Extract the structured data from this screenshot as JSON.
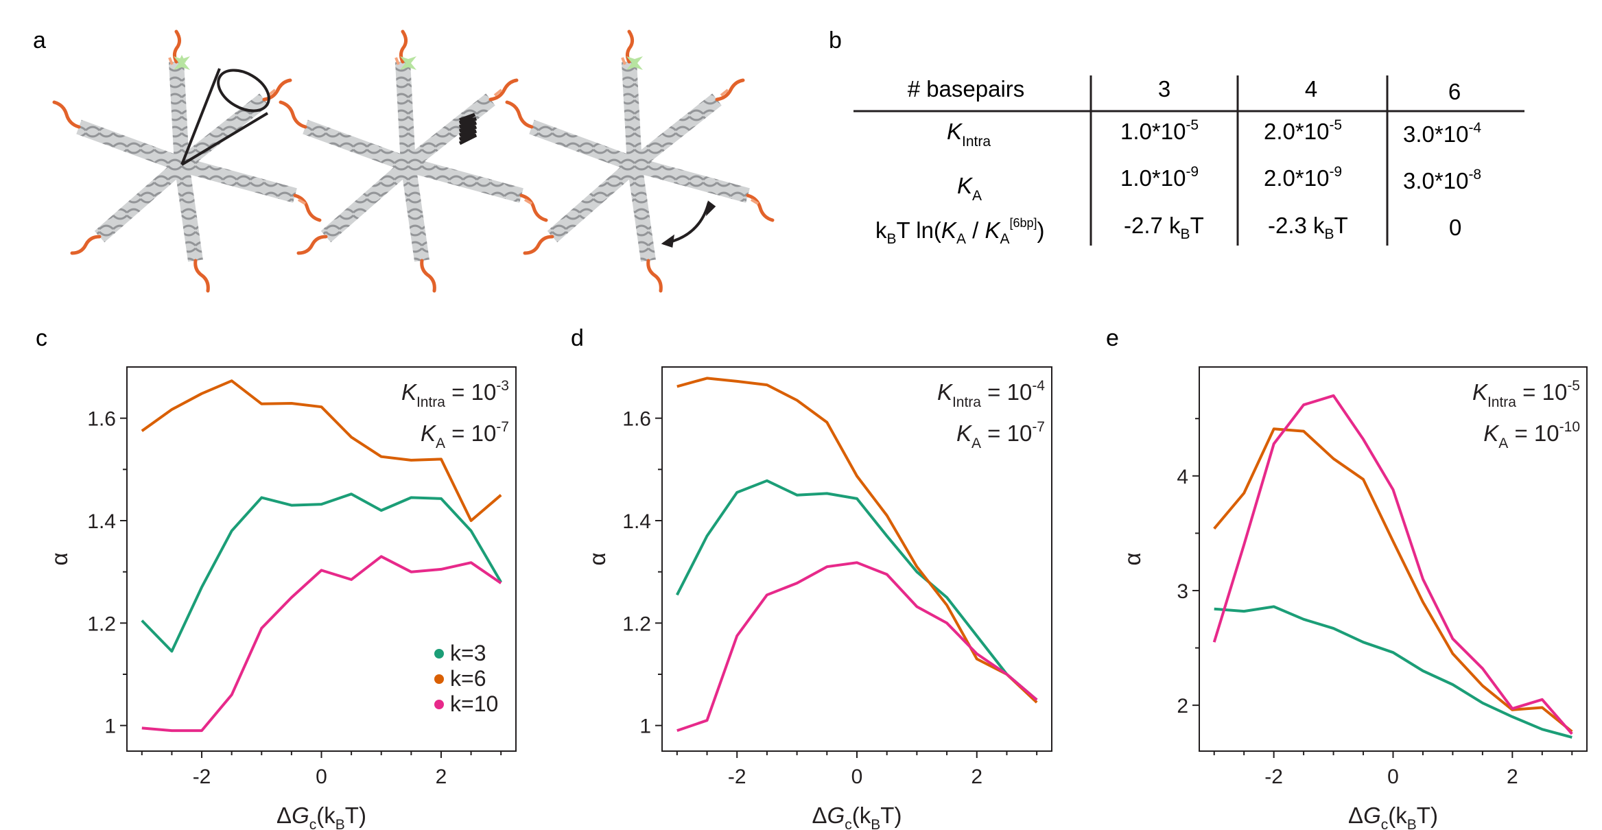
{
  "panel_labels": {
    "a": "a",
    "b": "b",
    "c": "c",
    "d": "d",
    "e": "e"
  },
  "table": {
    "headers": [
      "# basepairs",
      "3",
      "4",
      "6"
    ],
    "rows": [
      {
        "label": {
          "main": "K",
          "sub": "Intra"
        },
        "values": [
          "1.0*10-5",
          "2.0*10-5",
          "3.0*10-4"
        ]
      },
      {
        "label": {
          "main": "K",
          "sub": "A"
        },
        "values": [
          "1.0*10-9",
          "2.0*10-9",
          "3.0*10-8"
        ]
      },
      {
        "label": "kBT ln(KA / KA[6bp])",
        "values": [
          "-2.7 kBT",
          "-2.3 kBT",
          "0"
        ]
      }
    ]
  },
  "table_parts": {
    "r1": {
      "m": "1.0*10",
      "e": "-5"
    },
    "r1b": {
      "m": "2.0*10",
      "e": "-5"
    },
    "r1c": {
      "m": "3.0*10",
      "e": "-4"
    },
    "r2": {
      "m": "1.0*10",
      "e": "-9"
    },
    "r2b": {
      "m": "2.0*10",
      "e": "-9"
    },
    "r2c": {
      "m": "3.0*10",
      "e": "-8"
    },
    "r3a": "-2.7 k",
    "r3b": "-2.3 k",
    "r3c": "0",
    "sub_B": "B",
    "T": "T",
    "lbl3_a": "k",
    "lbl3_b": "T ln(",
    "lbl3_k": "K",
    "lbl3_sub": "A",
    "lbl3_slash": " / ",
    "lbl3_sup": "[6bp]",
    "lbl3_close": ")"
  },
  "colors": {
    "k3": "#1b9e77",
    "k6": "#d95f02",
    "k10": "#e7298a",
    "axis": "#231f20",
    "helix": "#bcbec0",
    "helix_dark": "#a7a9ac",
    "star": "#b7e4a0"
  },
  "legend": [
    {
      "label": "k=3",
      "series": "k3"
    },
    {
      "label": "k=6",
      "series": "k6"
    },
    {
      "label": "k=10",
      "series": "k10"
    }
  ],
  "axis_text": {
    "alpha": "α",
    "x_prefix": "Δ",
    "x_G": "G",
    "x_c": "c",
    "x_open": "(k",
    "x_B": "B",
    "x_close": "T)"
  },
  "chart_data": [
    {
      "type": "line",
      "panel": "c",
      "annotation": {
        "k_intra": "10-3",
        "k_a": "10-7"
      },
      "xlabel": "ΔGc(kBT)",
      "ylabel": "α",
      "xlim": [
        -3.25,
        3.25
      ],
      "ylim": [
        0.95,
        1.7
      ],
      "xticks": [
        -2,
        0,
        2
      ],
      "xtick_labels": [
        "-2",
        "0",
        "2"
      ],
      "yticks": [
        1.0,
        1.2,
        1.4,
        1.6
      ],
      "ytick_labels": [
        "1",
        "1.2",
        "1.4",
        "1.6"
      ],
      "x": [
        -3,
        -2.5,
        -2,
        -1.5,
        -1,
        -0.5,
        0,
        0.5,
        1,
        1.5,
        2,
        2.5,
        3
      ],
      "series": [
        {
          "name": "k=3",
          "key": "k3",
          "values": [
            1.205,
            1.145,
            1.27,
            1.38,
            1.445,
            1.43,
            1.432,
            1.452,
            1.42,
            1.445,
            1.443,
            1.38,
            1.28
          ]
        },
        {
          "name": "k=6",
          "key": "k6",
          "values": [
            1.575,
            1.617,
            1.648,
            1.673,
            1.628,
            1.629,
            1.622,
            1.563,
            1.525,
            1.518,
            1.52,
            1.4,
            1.45
          ]
        },
        {
          "name": "k=10",
          "key": "k10",
          "values": [
            0.995,
            0.99,
            0.99,
            1.06,
            1.19,
            1.25,
            1.303,
            1.285,
            1.33,
            1.3,
            1.305,
            1.318,
            1.278
          ]
        }
      ]
    },
    {
      "type": "line",
      "panel": "d",
      "annotation": {
        "k_intra": "10-4",
        "k_a": "10-7"
      },
      "xlabel": "ΔGc(kBT)",
      "ylabel": "α",
      "xlim": [
        -3.25,
        3.25
      ],
      "ylim": [
        0.95,
        1.7
      ],
      "xticks": [
        -2,
        0,
        2
      ],
      "xtick_labels": [
        "-2",
        "0",
        "2"
      ],
      "yticks": [
        1.0,
        1.2,
        1.4,
        1.6
      ],
      "ytick_labels": [
        "1",
        "1.2",
        "1.4",
        "1.6"
      ],
      "x": [
        -3,
        -2.5,
        -2,
        -1.5,
        -1,
        -0.5,
        0,
        0.5,
        1,
        1.5,
        2,
        2.5,
        3
      ],
      "series": [
        {
          "name": "k=3",
          "key": "k3",
          "values": [
            1.255,
            1.37,
            1.455,
            1.478,
            1.45,
            1.453,
            1.443,
            1.37,
            1.3,
            1.25,
            1.175,
            1.1,
            1.05
          ]
        },
        {
          "name": "k=6",
          "key": "k6",
          "values": [
            1.662,
            1.678,
            1.672,
            1.665,
            1.635,
            1.592,
            1.487,
            1.41,
            1.31,
            1.235,
            1.13,
            1.1,
            1.045
          ]
        },
        {
          "name": "k=10",
          "key": "k10",
          "values": [
            0.99,
            1.01,
            1.175,
            1.255,
            1.278,
            1.31,
            1.318,
            1.295,
            1.232,
            1.2,
            1.14,
            1.1,
            1.05
          ]
        }
      ]
    },
    {
      "type": "line",
      "panel": "e",
      "annotation": {
        "k_intra": "10-5",
        "k_a": "10-10"
      },
      "xlabel": "ΔGc(kBT)",
      "ylabel": "α",
      "xlim": [
        -3.25,
        3.25
      ],
      "ylim": [
        1.6,
        4.95
      ],
      "xticks": [
        -2,
        0,
        2
      ],
      "xtick_labels": [
        "-2",
        "0",
        "2"
      ],
      "yticks": [
        2,
        3,
        4
      ],
      "ytick_labels": [
        "2",
        "3",
        "4"
      ],
      "x": [
        -3,
        -2.5,
        -2,
        -1.5,
        -1,
        -0.5,
        0,
        0.5,
        1,
        1.5,
        2,
        2.5,
        3
      ],
      "series": [
        {
          "name": "k=3",
          "key": "k3",
          "values": [
            2.84,
            2.82,
            2.86,
            2.75,
            2.67,
            2.55,
            2.46,
            2.3,
            2.18,
            2.02,
            1.9,
            1.79,
            1.72
          ]
        },
        {
          "name": "k=6",
          "key": "k6",
          "values": [
            3.54,
            3.85,
            4.41,
            4.39,
            4.15,
            3.97,
            3.43,
            2.9,
            2.45,
            2.17,
            1.96,
            1.98,
            1.77
          ]
        },
        {
          "name": "k=10",
          "key": "k10",
          "values": [
            2.55,
            3.4,
            4.28,
            4.62,
            4.7,
            4.32,
            3.88,
            3.1,
            2.58,
            2.32,
            1.97,
            2.05,
            1.75
          ]
        }
      ]
    }
  ]
}
